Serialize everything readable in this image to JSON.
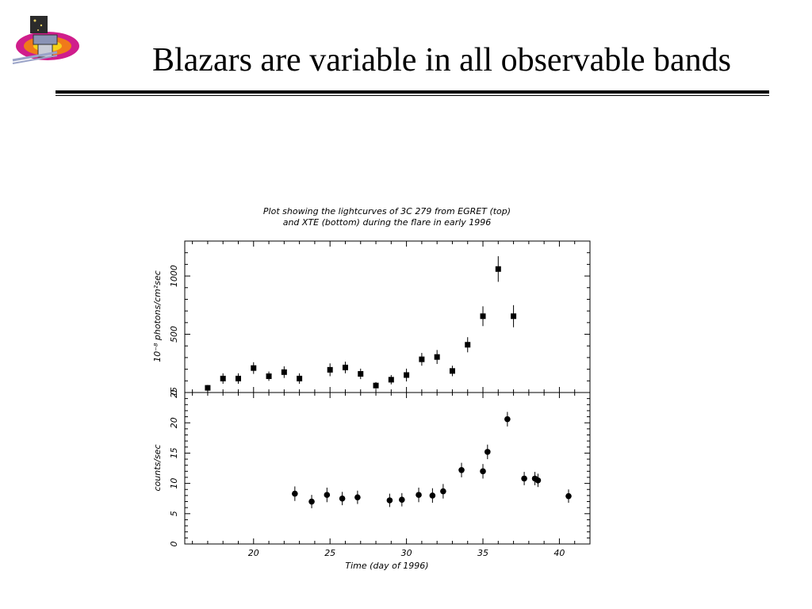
{
  "slide": {
    "title": "Blazars are variable in all observable bands",
    "logo_icon": "glast-satellite-logo"
  },
  "chart_data": [
    {
      "type": "scatter",
      "panel": "top",
      "title": "Plot showing the lightcurves of 3C 279 from EGRET (top)",
      "subtitle": "and XTE (bottom) during the flare in early 1996",
      "ylabel": "10⁻⁸ photons/cm²sec",
      "xlim": [
        15.5,
        42
      ],
      "ylim": [
        0,
        1300
      ],
      "y_ticks": [
        0,
        500,
        1000
      ],
      "y_tick_labels": [
        "0",
        "500",
        "1000"
      ],
      "marker": "square",
      "points": [
        {
          "x": 17.0,
          "y": 40,
          "err": 25
        },
        {
          "x": 18.0,
          "y": 120,
          "err": 45
        },
        {
          "x": 19.0,
          "y": 120,
          "err": 45
        },
        {
          "x": 20.0,
          "y": 210,
          "err": 50
        },
        {
          "x": 21.0,
          "y": 140,
          "err": 40
        },
        {
          "x": 22.0,
          "y": 175,
          "err": 50
        },
        {
          "x": 23.0,
          "y": 120,
          "err": 45
        },
        {
          "x": 25.0,
          "y": 195,
          "err": 55
        },
        {
          "x": 26.0,
          "y": 215,
          "err": 50
        },
        {
          "x": 27.0,
          "y": 160,
          "err": 45
        },
        {
          "x": 28.0,
          "y": 60,
          "err": 30
        },
        {
          "x": 29.0,
          "y": 110,
          "err": 40
        },
        {
          "x": 30.0,
          "y": 150,
          "err": 55
        },
        {
          "x": 31.0,
          "y": 285,
          "err": 55
        },
        {
          "x": 32.0,
          "y": 305,
          "err": 60
        },
        {
          "x": 33.0,
          "y": 185,
          "err": 45
        },
        {
          "x": 34.0,
          "y": 410,
          "err": 65
        },
        {
          "x": 35.0,
          "y": 655,
          "err": 85
        },
        {
          "x": 36.0,
          "y": 1060,
          "err": 110
        },
        {
          "x": 37.0,
          "y": 655,
          "err": 95
        }
      ]
    },
    {
      "type": "scatter",
      "panel": "bottom",
      "xlabel": "Time (day of 1996)",
      "ylabel": "counts/sec",
      "xlim": [
        15.5,
        42
      ],
      "ylim": [
        0,
        25
      ],
      "x_ticks": [
        20,
        25,
        30,
        35,
        40
      ],
      "x_tick_labels": [
        "20",
        "25",
        "30",
        "35",
        "40"
      ],
      "y_ticks": [
        0,
        5,
        10,
        15,
        20,
        25
      ],
      "y_tick_labels": [
        "0",
        "5",
        "10",
        "15",
        "20",
        "25"
      ],
      "marker": "circle",
      "points": [
        {
          "x": 22.7,
          "y": 8.3,
          "err": 1.2
        },
        {
          "x": 23.8,
          "y": 7.0,
          "err": 1.1
        },
        {
          "x": 24.8,
          "y": 8.1,
          "err": 1.2
        },
        {
          "x": 25.8,
          "y": 7.5,
          "err": 1.1
        },
        {
          "x": 26.8,
          "y": 7.7,
          "err": 1.1
        },
        {
          "x": 28.9,
          "y": 7.2,
          "err": 1.1
        },
        {
          "x": 29.7,
          "y": 7.3,
          "err": 1.1
        },
        {
          "x": 30.8,
          "y": 8.1,
          "err": 1.2
        },
        {
          "x": 31.7,
          "y": 8.0,
          "err": 1.2
        },
        {
          "x": 32.4,
          "y": 8.7,
          "err": 1.2
        },
        {
          "x": 33.6,
          "y": 12.2,
          "err": 1.2
        },
        {
          "x": 35.0,
          "y": 12.0,
          "err": 1.2
        },
        {
          "x": 35.3,
          "y": 15.2,
          "err": 1.2
        },
        {
          "x": 36.6,
          "y": 20.6,
          "err": 1.2
        },
        {
          "x": 37.7,
          "y": 10.8,
          "err": 1.1
        },
        {
          "x": 38.4,
          "y": 10.8,
          "err": 1.1
        },
        {
          "x": 38.6,
          "y": 10.5,
          "err": 1.1
        },
        {
          "x": 40.6,
          "y": 7.9,
          "err": 1.1
        }
      ]
    }
  ]
}
